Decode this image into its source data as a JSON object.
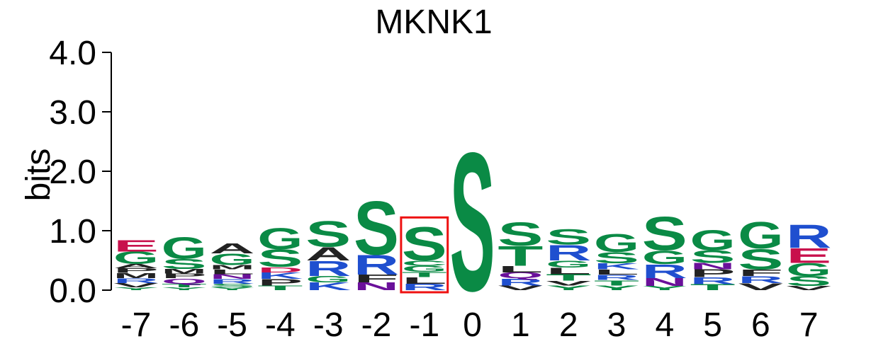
{
  "chart_data": {
    "type": "sequence-logo",
    "title": "MKNK1",
    "ylabel": "bits",
    "xlabel": "",
    "ylim": [
      0,
      4
    ],
    "yticks": [
      "0.0",
      "1.0",
      "2.0",
      "3.0",
      "4.0"
    ],
    "grid": false,
    "highlighted_position": "-1",
    "colors": {
      "polar_green": "#0a8a45",
      "basic_blue": "#1f4fcf",
      "acidic_red": "#c8104c",
      "amide_purple": "#6a109a",
      "hydrophobic_black": "#222222",
      "highlight_box": "#ee1111"
    },
    "positions": [
      {
        "label": "-7",
        "letters": [
          {
            "aa": "Y",
            "h": 0.05
          },
          {
            "aa": "V",
            "h": 0.07
          },
          {
            "aa": "R",
            "h": 0.08
          },
          {
            "aa": "M",
            "h": 0.09
          },
          {
            "aa": "P",
            "h": 0.08
          },
          {
            "aa": "A",
            "h": 0.07
          },
          {
            "aa": "G",
            "h": 0.21
          },
          {
            "aa": "E",
            "h": 0.2
          }
        ]
      },
      {
        "label": "-6",
        "letters": [
          {
            "aa": "Y",
            "h": 0.05
          },
          {
            "aa": "T",
            "h": 0.06
          },
          {
            "aa": "Q",
            "h": 0.09
          },
          {
            "aa": "P",
            "h": 0.08
          },
          {
            "aa": "M",
            "h": 0.08
          },
          {
            "aa": "S",
            "h": 0.17
          },
          {
            "aa": "G",
            "h": 0.37
          }
        ]
      },
      {
        "label": "-5",
        "letters": [
          {
            "aa": "Y",
            "h": 0.05
          },
          {
            "aa": "S",
            "h": 0.06
          },
          {
            "aa": "R",
            "h": 0.08
          },
          {
            "aa": "N",
            "h": 0.08
          },
          {
            "aa": "L",
            "h": 0.08
          },
          {
            "aa": "M",
            "h": 0.07
          },
          {
            "aa": "G",
            "h": 0.2
          },
          {
            "aa": "A",
            "h": 0.17
          }
        ]
      },
      {
        "label": "-4",
        "letters": [
          {
            "aa": "T",
            "h": 0.08
          },
          {
            "aa": "P",
            "h": 0.11
          },
          {
            "aa": "K",
            "h": 0.11
          },
          {
            "aa": "D",
            "h": 0.09
          },
          {
            "aa": "S",
            "h": 0.3
          },
          {
            "aa": "G",
            "h": 0.36
          }
        ]
      },
      {
        "label": "-3",
        "letters": [
          {
            "aa": "K",
            "h": 0.13
          },
          {
            "aa": "G",
            "h": 0.11
          },
          {
            "aa": "R",
            "h": 0.26
          },
          {
            "aa": "A",
            "h": 0.23
          },
          {
            "aa": "S",
            "h": 0.44
          }
        ]
      },
      {
        "label": "-2",
        "letters": [
          {
            "aa": "N",
            "h": 0.13
          },
          {
            "aa": "F",
            "h": 0.13
          },
          {
            "aa": "R",
            "h": 0.34
          },
          {
            "aa": "S",
            "h": 0.92
          }
        ]
      },
      {
        "label": "-1",
        "letters": [
          {
            "aa": "R",
            "h": 0.11
          },
          {
            "aa": "L",
            "h": 0.11
          },
          {
            "aa": "T",
            "h": 0.09
          },
          {
            "aa": "G",
            "h": 0.1
          },
          {
            "aa": "C",
            "h": 0.09
          },
          {
            "aa": "S",
            "h": 0.58
          }
        ]
      },
      {
        "label": "0",
        "letters": [
          {
            "aa": "S",
            "h": 2.38
          }
        ]
      },
      {
        "label": "1",
        "letters": [
          {
            "aa": "V",
            "h": 0.08
          },
          {
            "aa": "R",
            "h": 0.12
          },
          {
            "aa": "Q",
            "h": 0.1
          },
          {
            "aa": "L",
            "h": 0.11
          },
          {
            "aa": "T",
            "h": 0.34
          },
          {
            "aa": "S",
            "h": 0.4
          }
        ]
      },
      {
        "label": "2",
        "letters": [
          {
            "aa": "Y",
            "h": 0.08
          },
          {
            "aa": "V",
            "h": 0.08
          },
          {
            "aa": "T",
            "h": 0.11
          },
          {
            "aa": "L",
            "h": 0.11
          },
          {
            "aa": "G",
            "h": 0.12
          },
          {
            "aa": "R",
            "h": 0.27
          },
          {
            "aa": "S",
            "h": 0.27
          }
        ]
      },
      {
        "label": "3",
        "letters": [
          {
            "aa": "Y",
            "h": 0.08
          },
          {
            "aa": "T",
            "h": 0.09
          },
          {
            "aa": "R",
            "h": 0.09
          },
          {
            "aa": "L",
            "h": 0.09
          },
          {
            "aa": "K",
            "h": 0.1
          },
          {
            "aa": "S",
            "h": 0.19
          },
          {
            "aa": "G",
            "h": 0.31
          }
        ]
      },
      {
        "label": "4",
        "letters": [
          {
            "aa": "Y",
            "h": 0.07
          },
          {
            "aa": "N",
            "h": 0.13
          },
          {
            "aa": "R",
            "h": 0.24
          },
          {
            "aa": "G",
            "h": 0.23
          },
          {
            "aa": "S",
            "h": 0.58
          }
        ]
      },
      {
        "label": "5",
        "letters": [
          {
            "aa": "T",
            "h": 0.1
          },
          {
            "aa": "R",
            "h": 0.12
          },
          {
            "aa": "P",
            "h": 0.13
          },
          {
            "aa": "N",
            "h": 0.11
          },
          {
            "aa": "S",
            "h": 0.21
          },
          {
            "aa": "G",
            "h": 0.35
          }
        ]
      },
      {
        "label": "6",
        "letters": [
          {
            "aa": "V",
            "h": 0.12
          },
          {
            "aa": "R",
            "h": 0.12
          },
          {
            "aa": "F",
            "h": 0.11
          },
          {
            "aa": "S",
            "h": 0.35
          },
          {
            "aa": "G",
            "h": 0.46
          }
        ]
      },
      {
        "label": "7",
        "letters": [
          {
            "aa": "V",
            "h": 0.07
          },
          {
            "aa": "S",
            "h": 0.17
          },
          {
            "aa": "G",
            "h": 0.22
          },
          {
            "aa": "E",
            "h": 0.25
          },
          {
            "aa": "R",
            "h": 0.4
          }
        ]
      }
    ]
  }
}
